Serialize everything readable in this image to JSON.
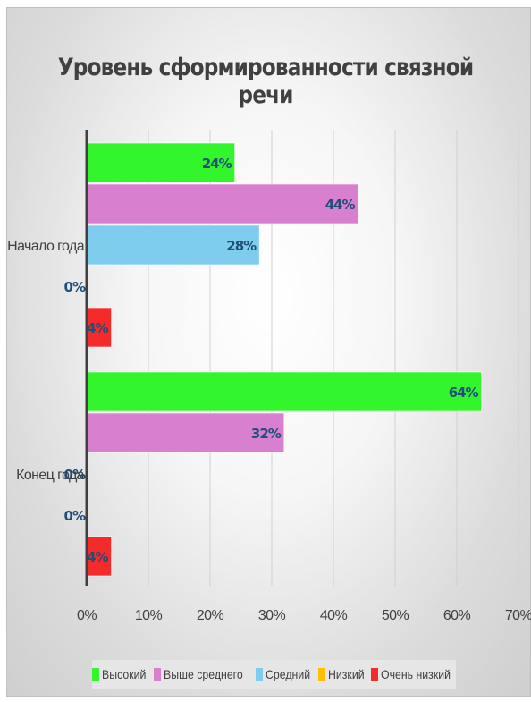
{
  "chart_data": {
    "type": "bar",
    "orientation": "horizontal",
    "title": "Уровень сформированности связной речи",
    "categories": [
      "Начало года",
      "Конец года"
    ],
    "series": [
      {
        "name": "Высокий",
        "color": "#33f52c",
        "values": [
          24,
          64
        ],
        "labels": [
          "24%",
          "64%"
        ]
      },
      {
        "name": "Выше среднего",
        "color": "#d87fd0",
        "values": [
          44,
          32
        ],
        "labels": [
          "44%",
          "32%"
        ]
      },
      {
        "name": "Средний",
        "color": "#7fcdee",
        "values": [
          28,
          0
        ],
        "labels": [
          "28%",
          "0%"
        ]
      },
      {
        "name": "Низкий",
        "color": "#ffc000",
        "values": [
          0,
          0
        ],
        "labels": [
          "0%",
          "0%"
        ]
      },
      {
        "name": "Очень низкий",
        "color": "#f52a2a",
        "values": [
          4,
          4
        ],
        "labels": [
          "4%",
          "4%"
        ]
      }
    ],
    "x_ticks": [
      "0%",
      "10%",
      "20%",
      "30%",
      "40%",
      "50%",
      "60%",
      "70%"
    ],
    "xlim": [
      0,
      70
    ],
    "grid": true,
    "legend_position": "bottom",
    "label_color": "#1f4e79"
  }
}
